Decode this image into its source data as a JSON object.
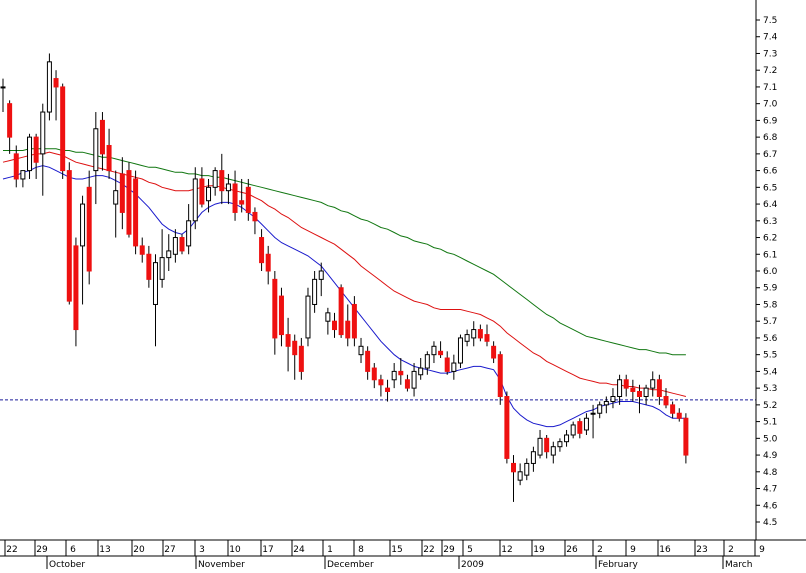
{
  "chart_data": {
    "type": "candlestick",
    "title": "",
    "xlabel": "",
    "ylabel": "",
    "ylim": [
      4.4,
      7.6
    ],
    "y_ticks": [
      4.5,
      4.6,
      4.7,
      4.8,
      4.9,
      5.0,
      5.1,
      5.2,
      5.3,
      5.4,
      5.5,
      5.6,
      5.7,
      5.8,
      5.9,
      6.0,
      6.1,
      6.2,
      6.3,
      6.4,
      6.5,
      6.6,
      6.7,
      6.8,
      6.9,
      7.0,
      7.1,
      7.2,
      7.3,
      7.4,
      7.5
    ],
    "y_tick_labels": [
      "4.5",
      "4.6",
      "4.7",
      "4.8",
      "4.9",
      "5.0",
      "5.1",
      "5.2",
      "5.3",
      "5.4",
      "5.5",
      "5.6",
      "5.7",
      "5.8",
      "5.9",
      "6.0",
      "6.1",
      "6.2",
      "6.3",
      "6.4",
      "6.5",
      "6.6",
      "6.7",
      "6.8",
      "6.9",
      "7.0",
      "7.1",
      "7.2",
      "7.3",
      "7.4",
      "7.5"
    ],
    "x_day_labels": [
      "22",
      "29",
      "6",
      "13",
      "20",
      "27",
      "3",
      "10",
      "17",
      "24",
      "1",
      "8",
      "15",
      "22",
      "29",
      "5",
      "12",
      "19",
      "26",
      "2",
      "9",
      "16",
      "23",
      "2",
      "9"
    ],
    "x_month_labels": [
      "October",
      "November",
      "December",
      "2009",
      "February",
      "March"
    ],
    "reference_line": 5.23,
    "grid": false,
    "colors": {
      "up": "#ffffff",
      "down": "#ee1111",
      "wick": "#000000",
      "ma_short": "#1a1acc",
      "ma_mid": "#dd1111",
      "ma_long": "#117711",
      "reference": "#1a1a99"
    },
    "candles": [
      [
        7.1,
        7.15,
        6.95,
        7.1
      ],
      [
        7.0,
        7.02,
        6.7,
        6.8
      ],
      [
        6.7,
        6.75,
        6.5,
        6.55
      ],
      [
        6.55,
        6.6,
        6.5,
        6.6
      ],
      [
        6.6,
        6.82,
        6.55,
        6.8
      ],
      [
        6.8,
        6.82,
        6.55,
        6.65
      ],
      [
        6.7,
        7.0,
        6.45,
        6.95
      ],
      [
        6.95,
        7.3,
        6.9,
        7.25
      ],
      [
        7.15,
        7.2,
        6.9,
        7.1
      ],
      [
        7.1,
        7.12,
        6.55,
        6.6
      ],
      [
        6.6,
        6.65,
        5.8,
        5.82
      ],
      [
        6.15,
        6.2,
        5.55,
        5.65
      ],
      [
        6.15,
        6.45,
        5.8,
        6.4
      ],
      [
        6.5,
        6.6,
        5.92,
        6.0
      ],
      [
        6.6,
        6.95,
        6.4,
        6.85
      ],
      [
        6.9,
        6.95,
        6.6,
        6.7
      ],
      [
        6.75,
        6.85,
        6.55,
        6.6
      ],
      [
        6.4,
        6.6,
        6.2,
        6.48
      ],
      [
        6.58,
        6.68,
        6.25,
        6.35
      ],
      [
        6.6,
        6.65,
        6.2,
        6.22
      ],
      [
        6.55,
        6.6,
        6.1,
        6.15
      ],
      [
        6.15,
        6.2,
        6.05,
        6.1
      ],
      [
        6.1,
        6.15,
        5.9,
        5.95
      ],
      [
        5.8,
        6.1,
        5.55,
        6.05
      ],
      [
        5.95,
        6.25,
        5.9,
        6.08
      ],
      [
        6.08,
        6.22,
        6.0,
        6.12
      ],
      [
        6.1,
        6.25,
        6.05,
        6.2
      ],
      [
        6.2,
        6.22,
        6.1,
        6.12
      ],
      [
        6.15,
        6.4,
        6.1,
        6.3
      ],
      [
        6.3,
        6.62,
        6.25,
        6.55
      ],
      [
        6.55,
        6.62,
        6.38,
        6.4
      ],
      [
        6.42,
        6.55,
        6.35,
        6.5
      ],
      [
        6.5,
        6.62,
        6.45,
        6.6
      ],
      [
        6.6,
        6.7,
        6.4,
        6.48
      ],
      [
        6.48,
        6.58,
        6.4,
        6.52
      ],
      [
        6.52,
        6.6,
        6.3,
        6.35
      ],
      [
        6.42,
        6.55,
        6.35,
        6.4
      ],
      [
        6.5,
        6.55,
        6.3,
        6.35
      ],
      [
        6.35,
        6.38,
        6.22,
        6.3
      ],
      [
        6.2,
        6.25,
        6.0,
        6.05
      ],
      [
        6.1,
        6.15,
        5.92,
        6.0
      ],
      [
        5.95,
        6.0,
        5.5,
        5.6
      ],
      [
        5.85,
        5.9,
        5.55,
        5.62
      ],
      [
        5.62,
        5.72,
        5.4,
        5.55
      ],
      [
        5.58,
        5.62,
        5.35,
        5.5
      ],
      [
        5.55,
        5.6,
        5.35,
        5.4
      ],
      [
        5.6,
        5.9,
        5.55,
        5.85
      ],
      [
        5.8,
        6.0,
        5.75,
        5.95
      ],
      [
        5.95,
        6.05,
        5.85,
        6.0
      ],
      [
        5.7,
        5.78,
        5.62,
        5.75
      ],
      [
        5.7,
        5.75,
        5.6,
        5.65
      ],
      [
        5.9,
        5.92,
        5.6,
        5.62
      ],
      [
        5.7,
        5.8,
        5.55,
        5.6
      ],
      [
        5.8,
        5.85,
        5.55,
        5.6
      ],
      [
        5.5,
        5.6,
        5.45,
        5.55
      ],
      [
        5.52,
        5.55,
        5.35,
        5.4
      ],
      [
        5.42,
        5.45,
        5.3,
        5.35
      ],
      [
        5.35,
        5.38,
        5.25,
        5.32
      ],
      [
        5.3,
        5.35,
        5.22,
        5.28
      ],
      [
        5.35,
        5.45,
        5.3,
        5.4
      ],
      [
        5.4,
        5.48,
        5.32,
        5.38
      ],
      [
        5.35,
        5.38,
        5.28,
        5.3
      ],
      [
        5.3,
        5.45,
        5.25,
        5.4
      ],
      [
        5.38,
        5.48,
        5.35,
        5.42
      ],
      [
        5.42,
        5.52,
        5.38,
        5.5
      ],
      [
        5.5,
        5.58,
        5.45,
        5.55
      ],
      [
        5.52,
        5.58,
        5.48,
        5.5
      ],
      [
        5.48,
        5.52,
        5.38,
        5.4
      ],
      [
        5.4,
        5.5,
        5.35,
        5.45
      ],
      [
        5.45,
        5.62,
        5.42,
        5.6
      ],
      [
        5.58,
        5.65,
        5.55,
        5.62
      ],
      [
        5.6,
        5.7,
        5.55,
        5.65
      ],
      [
        5.65,
        5.68,
        5.58,
        5.6
      ],
      [
        5.62,
        5.68,
        5.55,
        5.58
      ],
      [
        5.55,
        5.58,
        5.45,
        5.48
      ],
      [
        5.5,
        5.52,
        5.2,
        5.25
      ],
      [
        5.25,
        5.28,
        4.85,
        4.88
      ],
      [
        4.85,
        4.9,
        4.62,
        4.8
      ],
      [
        4.75,
        4.85,
        4.72,
        4.8
      ],
      [
        4.78,
        4.88,
        4.75,
        4.85
      ],
      [
        4.85,
        4.95,
        4.8,
        4.92
      ],
      [
        4.9,
        5.05,
        4.88,
        5.0
      ],
      [
        5.0,
        5.02,
        4.88,
        4.92
      ],
      [
        4.9,
        4.98,
        4.85,
        4.95
      ],
      [
        4.95,
        5.0,
        4.92,
        4.98
      ],
      [
        4.98,
        5.05,
        4.95,
        5.02
      ],
      [
        5.02,
        5.1,
        5.0,
        5.08
      ],
      [
        5.1,
        5.12,
        5.0,
        5.03
      ],
      [
        5.05,
        5.15,
        5.02,
        5.12
      ],
      [
        5.15,
        5.2,
        5.0,
        5.15
      ],
      [
        5.15,
        5.22,
        5.12,
        5.2
      ],
      [
        5.2,
        5.25,
        5.15,
        5.22
      ],
      [
        5.22,
        5.3,
        5.18,
        5.25
      ],
      [
        5.25,
        5.38,
        5.2,
        5.35
      ],
      [
        5.35,
        5.38,
        5.25,
        5.3
      ],
      [
        5.3,
        5.35,
        5.22,
        5.28
      ],
      [
        5.28,
        5.32,
        5.15,
        5.25
      ],
      [
        5.25,
        5.32,
        5.2,
        5.3
      ],
      [
        5.3,
        5.4,
        5.25,
        5.35
      ],
      [
        5.35,
        5.38,
        5.2,
        5.25
      ],
      [
        5.25,
        5.3,
        5.18,
        5.2
      ],
      [
        5.2,
        5.22,
        5.12,
        5.15
      ],
      [
        5.15,
        5.18,
        5.1,
        5.12
      ],
      [
        5.12,
        5.15,
        4.85,
        4.9
      ]
    ],
    "ma_short": [
      6.55,
      6.56,
      6.57,
      6.59,
      6.6,
      6.62,
      6.63,
      6.62,
      6.6,
      6.58,
      6.56,
      6.55,
      6.55,
      6.56,
      6.57,
      6.57,
      6.56,
      6.54,
      6.52,
      6.49,
      6.46,
      6.42,
      6.38,
      6.33,
      6.28,
      6.25,
      6.23,
      6.22,
      6.25,
      6.3,
      6.35,
      6.38,
      6.4,
      6.41,
      6.41,
      6.4,
      6.38,
      6.35,
      6.32,
      6.28,
      6.24,
      6.2,
      6.17,
      6.15,
      6.13,
      6.11,
      6.09,
      6.06,
      6.03,
      5.98,
      5.93,
      5.88,
      5.83,
      5.78,
      5.73,
      5.68,
      5.63,
      5.58,
      5.54,
      5.5,
      5.47,
      5.45,
      5.43,
      5.42,
      5.41,
      5.4,
      5.39,
      5.39,
      5.4,
      5.41,
      5.42,
      5.43,
      5.43,
      5.42,
      5.41,
      5.35,
      5.25,
      5.18,
      5.14,
      5.11,
      5.09,
      5.08,
      5.07,
      5.07,
      5.08,
      5.1,
      5.12,
      5.14,
      5.16,
      5.17,
      5.19,
      5.2,
      5.21,
      5.22,
      5.22,
      5.22,
      5.21,
      5.2,
      5.19,
      5.17,
      5.14,
      5.12,
      5.12,
      5.12
    ],
    "ma_mid": [
      6.65,
      6.66,
      6.67,
      6.68,
      6.69,
      6.7,
      6.7,
      6.71,
      6.7,
      6.69,
      6.67,
      6.65,
      6.64,
      6.63,
      6.62,
      6.61,
      6.6,
      6.59,
      6.58,
      6.57,
      6.56,
      6.55,
      6.53,
      6.52,
      6.5,
      6.49,
      6.48,
      6.48,
      6.48,
      6.49,
      6.5,
      6.51,
      6.51,
      6.5,
      6.49,
      6.48,
      6.47,
      6.46,
      6.44,
      6.42,
      6.39,
      6.37,
      6.34,
      6.32,
      6.29,
      6.26,
      6.24,
      6.22,
      6.2,
      6.18,
      6.16,
      6.13,
      6.1,
      6.07,
      6.03,
      6.0,
      5.97,
      5.94,
      5.91,
      5.88,
      5.86,
      5.84,
      5.82,
      5.81,
      5.8,
      5.78,
      5.77,
      5.77,
      5.77,
      5.77,
      5.76,
      5.75,
      5.74,
      5.72,
      5.7,
      5.67,
      5.63,
      5.6,
      5.57,
      5.54,
      5.51,
      5.49,
      5.46,
      5.44,
      5.42,
      5.4,
      5.38,
      5.36,
      5.35,
      5.34,
      5.33,
      5.33,
      5.32,
      5.32,
      5.31,
      5.31,
      5.3,
      5.3,
      5.29,
      5.29,
      5.28,
      5.27,
      5.26,
      5.25
    ],
    "ma_long": [
      6.72,
      6.72,
      6.72,
      6.72,
      6.73,
      6.73,
      6.73,
      6.73,
      6.73,
      6.72,
      6.72,
      6.71,
      6.71,
      6.7,
      6.69,
      6.68,
      6.68,
      6.67,
      6.66,
      6.65,
      6.64,
      6.63,
      6.62,
      6.62,
      6.61,
      6.6,
      6.59,
      6.59,
      6.58,
      6.58,
      6.57,
      6.57,
      6.56,
      6.56,
      6.55,
      6.54,
      6.53,
      6.52,
      6.51,
      6.5,
      6.49,
      6.48,
      6.47,
      6.46,
      6.45,
      6.44,
      6.43,
      6.42,
      6.41,
      6.39,
      6.38,
      6.36,
      6.35,
      6.33,
      6.31,
      6.3,
      6.28,
      6.26,
      6.25,
      6.23,
      6.21,
      6.2,
      6.18,
      6.17,
      6.16,
      6.14,
      6.13,
      6.11,
      6.1,
      6.08,
      6.06,
      6.04,
      6.02,
      6.0,
      5.98,
      5.95,
      5.92,
      5.89,
      5.86,
      5.83,
      5.8,
      5.77,
      5.74,
      5.72,
      5.69,
      5.67,
      5.65,
      5.63,
      5.61,
      5.6,
      5.59,
      5.58,
      5.57,
      5.56,
      5.55,
      5.54,
      5.53,
      5.53,
      5.52,
      5.51,
      5.51,
      5.5,
      5.5,
      5.5
    ]
  }
}
